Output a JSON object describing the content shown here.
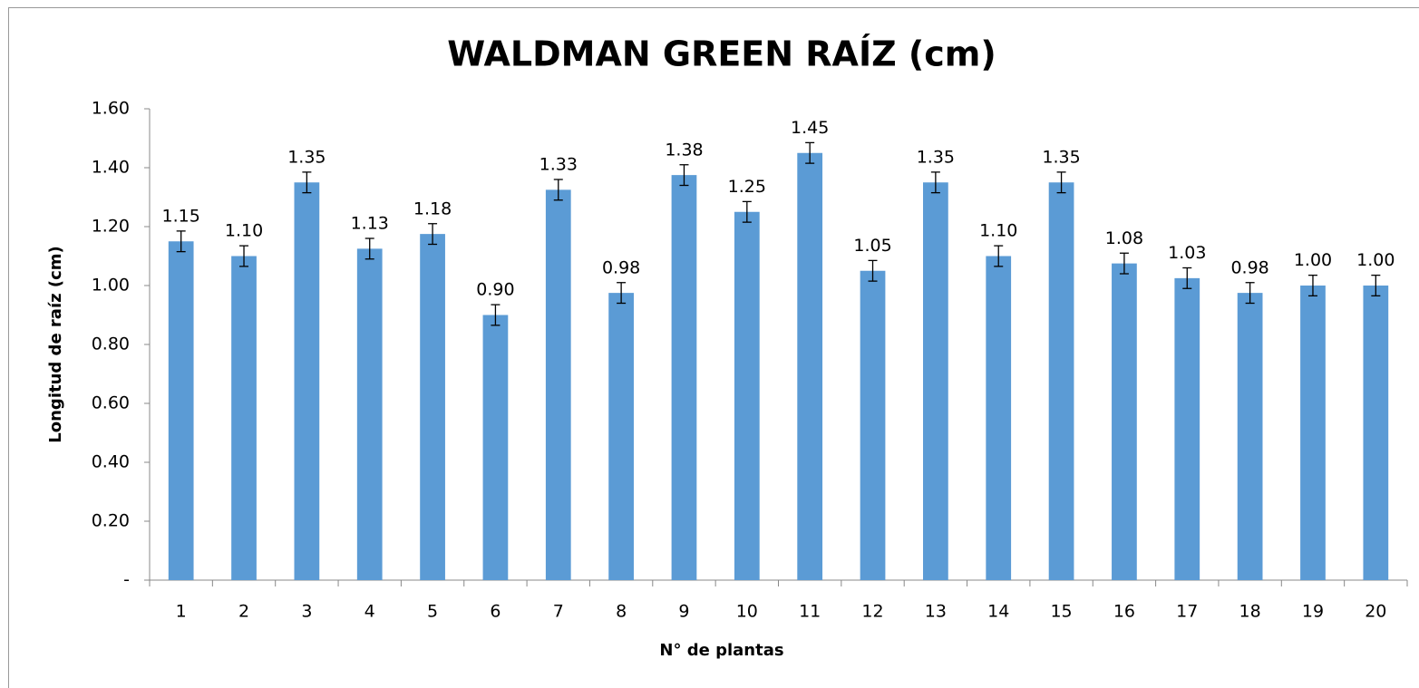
{
  "chart_data": {
    "type": "bar",
    "title": "WALDMAN GREEN RAÍZ (cm)",
    "x_label": "N° de plantas",
    "y_label": "Longitud de raíz (cm)",
    "categories": [
      "1",
      "2",
      "3",
      "4",
      "5",
      "6",
      "7",
      "8",
      "9",
      "10",
      "11",
      "12",
      "13",
      "14",
      "15",
      "16",
      "17",
      "18",
      "19",
      "20"
    ],
    "values": [
      1.15,
      1.1,
      1.35,
      1.125,
      1.175,
      0.9,
      1.325,
      0.975,
      1.375,
      1.25,
      1.45,
      1.05,
      1.35,
      1.1,
      1.35,
      1.075,
      1.025,
      0.975,
      1.0,
      1.0
    ],
    "value_labels": [
      "1.15",
      "1.10",
      "1.35",
      "1.13",
      "1.18",
      "0.90",
      "1.33",
      "0.98",
      "1.38",
      "1.25",
      "1.45",
      "1.05",
      "1.35",
      "1.10",
      "1.35",
      "1.08",
      "1.03",
      "0.98",
      "1.00",
      "1.00"
    ],
    "errors": [
      0.035,
      0.035,
      0.035,
      0.035,
      0.035,
      0.035,
      0.035,
      0.035,
      0.035,
      0.035,
      0.035,
      0.035,
      0.035,
      0.035,
      0.035,
      0.035,
      0.035,
      0.035,
      0.035,
      0.035
    ],
    "color": "#5b9bd5",
    "ylim": [
      0,
      1.6
    ],
    "yticks": [
      {
        "value": 0,
        "label": "-"
      },
      {
        "value": 0.2,
        "label": "0.20"
      },
      {
        "value": 0.4,
        "label": "0.40"
      },
      {
        "value": 0.6,
        "label": "0.60"
      },
      {
        "value": 0.8,
        "label": "0.80"
      },
      {
        "value": 1.0,
        "label": "1.00"
      },
      {
        "value": 1.2,
        "label": "1.20"
      },
      {
        "value": 1.4,
        "label": "1.40"
      },
      {
        "value": 1.6,
        "label": "1.60"
      }
    ],
    "grid": false
  }
}
